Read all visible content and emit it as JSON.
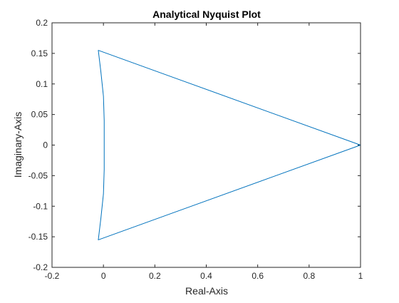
{
  "chart_data": {
    "type": "line",
    "title": "Analytical Nyquist Plot",
    "xlabel": "Real-Axis",
    "ylabel": "Imaginary-Axis",
    "xlim": [
      -0.2,
      1.0
    ],
    "ylim": [
      -0.2,
      0.2
    ],
    "xticks": [
      "-0.2",
      "0",
      "0.2",
      "0.4",
      "0.6",
      "0.8",
      "1"
    ],
    "yticks": [
      "-0.2",
      "-0.15",
      "-0.1",
      "-0.05",
      "0",
      "0.05",
      "0.1",
      "0.15",
      "0.2"
    ],
    "grid": false,
    "line_color": "#0072BD",
    "axis_color": "#262626",
    "series": [
      {
        "x": [
          1.0,
          -0.02,
          -0.01,
          0.0,
          0.003,
          0.003,
          0.0,
          -0.01,
          -0.02,
          1.0
        ],
        "y": [
          0.0,
          0.155,
          0.12,
          0.08,
          0.04,
          -0.04,
          -0.08,
          -0.12,
          -0.155,
          0.0
        ]
      }
    ]
  }
}
